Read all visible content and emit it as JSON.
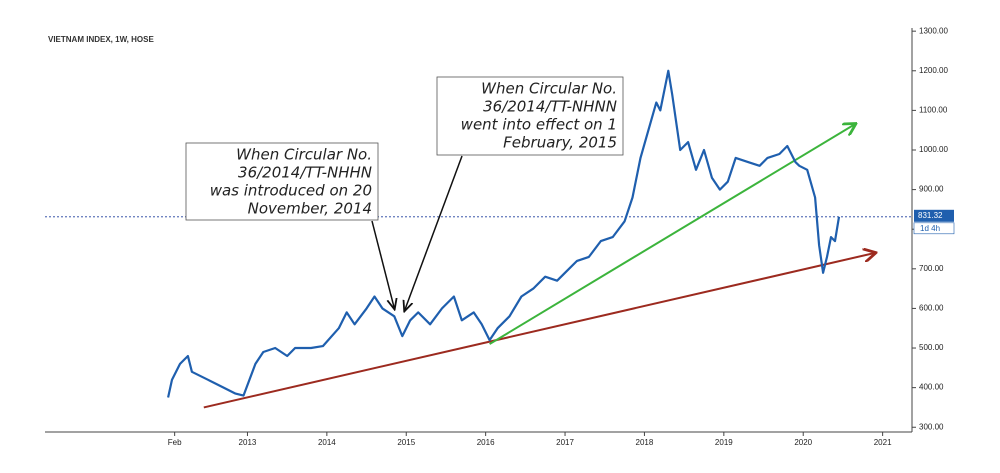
{
  "chart_data": {
    "type": "line",
    "title": "VIETNAM INDEX, 1W, HOSE",
    "x": [
      2012.0,
      2012.05,
      2012.15,
      2012.25,
      2012.3,
      2012.5,
      2012.7,
      2012.85,
      2012.95,
      2013.1,
      2013.2,
      2013.35,
      2013.5,
      2013.6,
      2013.8,
      2013.95,
      2014.15,
      2014.25,
      2014.35,
      2014.5,
      2014.6,
      2014.7,
      2014.85,
      2014.95,
      2015.05,
      2015.15,
      2015.3,
      2015.45,
      2015.6,
      2015.7,
      2015.85,
      2015.95,
      2016.05,
      2016.15,
      2016.3,
      2016.45,
      2016.6,
      2016.75,
      2016.9,
      2017.0,
      2017.15,
      2017.3,
      2017.45,
      2017.6,
      2017.75,
      2017.85,
      2017.95,
      2018.05,
      2018.15,
      2018.2,
      2018.3,
      2018.35,
      2018.45,
      2018.55,
      2018.65,
      2018.75,
      2018.85,
      2018.95,
      2019.05,
      2019.15,
      2019.3,
      2019.45,
      2019.55,
      2019.7,
      2019.8,
      2019.9,
      2019.95,
      2020.05,
      2020.15,
      2020.2,
      2020.25,
      2020.3,
      2020.35,
      2020.4,
      2020.45
    ],
    "series": [
      {
        "color": "#1f5fae",
        "values": [
          375,
          420,
          460,
          480,
          440,
          420,
          400,
          385,
          380,
          460,
          490,
          500,
          480,
          500,
          500,
          505,
          550,
          590,
          560,
          600,
          630,
          600,
          580,
          530,
          570,
          590,
          560,
          600,
          630,
          570,
          590,
          560,
          520,
          550,
          580,
          630,
          650,
          680,
          670,
          690,
          720,
          730,
          770,
          780,
          820,
          880,
          980,
          1050,
          1120,
          1100,
          1200,
          1140,
          1000,
          1020,
          950,
          1000,
          930,
          900,
          920,
          980,
          970,
          960,
          980,
          990,
          1010,
          970,
          960,
          950,
          880,
          760,
          690,
          730,
          780,
          770,
          831.32
        ]
      }
    ],
    "trendlines": [
      {
        "color": "#9c2a1f",
        "x": [
          2012.45,
          2020.9
        ],
        "y": [
          350,
          740
        ]
      },
      {
        "color": "#3cb43c",
        "x": [
          2016.05,
          2020.65
        ],
        "y": [
          510,
          1065
        ]
      }
    ],
    "last_price": 831.32,
    "last_price_note": "1d 4h",
    "annotations": [
      {
        "lines": [
          "When Circular No.",
          "36/2014/TT-NHHN",
          "was introduced on 20",
          "November, 2014"
        ],
        "x": 2014.85,
        "y": 590
      },
      {
        "lines": [
          "When Circular No.",
          "36/2014/TT-NHNN",
          "went into effect on 1",
          "February, 2015"
        ],
        "x": 2014.98,
        "y": 585
      }
    ],
    "xlim": [
      2010.45,
      2021.37
    ],
    "xticks": [
      {
        "value": 2012.083,
        "label": "Feb"
      },
      2013,
      2014,
      2015,
      2016,
      2017,
      2018,
      2019,
      2020,
      2021
    ],
    "ylim": [
      288,
      1308
    ],
    "yticks": [
      {
        "value": 300,
        "label": "300.00"
      },
      {
        "value": 400,
        "label": "400.00"
      },
      {
        "value": 500,
        "label": "500.00"
      },
      {
        "value": 600,
        "label": "600.00"
      },
      {
        "value": 700,
        "label": "700.00"
      },
      {
        "value": 800,
        "label": "800.00"
      },
      {
        "value": 900,
        "label": "900.00"
      },
      {
        "value": 1000,
        "label": "1000.00"
      },
      {
        "value": 1100,
        "label": "1100.00"
      },
      {
        "value": 1200,
        "label": "1200.00"
      },
      {
        "value": 1300,
        "label": "1300.00"
      }
    ]
  }
}
